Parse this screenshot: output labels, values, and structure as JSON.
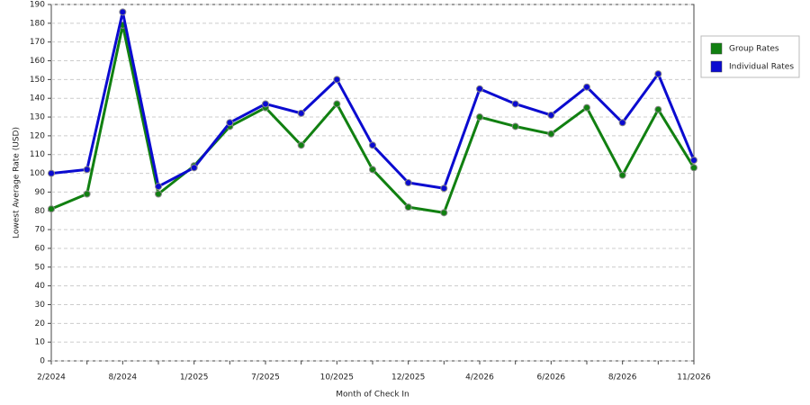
{
  "chart_data": {
    "type": "line",
    "x_label": "Month of Check In",
    "y_label": "Lowest Average Rate (USD)",
    "categories": [
      "2/2024",
      null,
      "8/2024",
      null,
      "1/2025",
      null,
      "7/2025",
      null,
      "10/2025",
      null,
      "12/2025",
      null,
      "4/2026",
      null,
      "6/2026",
      null,
      "8/2026",
      null,
      "11/2026"
    ],
    "series": [
      {
        "name": "Group Rates",
        "color": "#118011",
        "values": [
          81,
          89,
          179,
          89,
          104,
          125,
          135,
          115,
          137,
          102,
          82,
          79,
          130,
          125,
          121,
          135,
          99,
          134,
          103
        ]
      },
      {
        "name": "Individual Rates",
        "color": "#0b0bd0",
        "values": [
          100,
          102,
          186,
          93,
          103,
          127,
          137,
          132,
          150,
          115,
          95,
          92,
          145,
          137,
          131,
          146,
          127,
          153,
          107
        ]
      }
    ],
    "ylim": [
      0,
      190
    ],
    "yticks": [
      0,
      10,
      20,
      30,
      40,
      50,
      60,
      70,
      80,
      90,
      100,
      110,
      120,
      130,
      140,
      150,
      160,
      170,
      180,
      190
    ],
    "grid": true,
    "legend": "right"
  }
}
